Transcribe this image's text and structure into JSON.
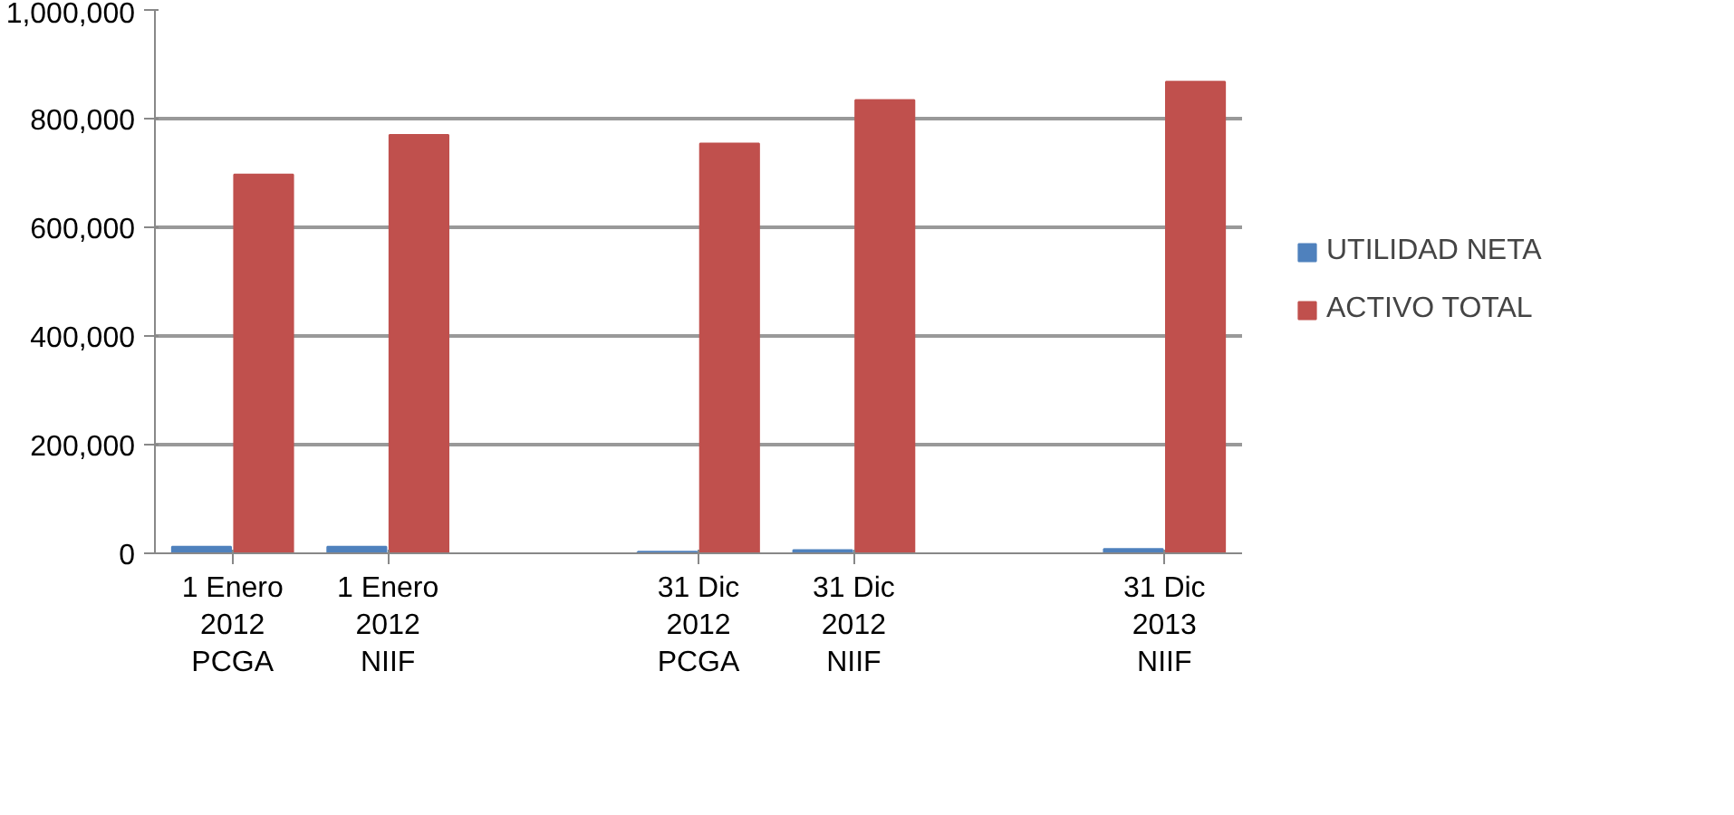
{
  "chart_data": {
    "type": "bar",
    "categories": [
      "1 Enero\n2012\nPCGA",
      "1 Enero\n2012\nNIIF",
      null,
      "31 Dic\n2012\nPCGA",
      "31 Dic\n2012\nNIIF",
      null,
      "31 Dic\n2013\nNIIF"
    ],
    "series": [
      {
        "name": "UTILIDAD NETA",
        "color": "#4f81bd",
        "values": [
          12000,
          12000,
          null,
          3000,
          6000,
          null,
          8000
        ]
      },
      {
        "name": "ACTIVO TOTAL",
        "color": "#c0504d",
        "values": [
          697000,
          770000,
          null,
          754000,
          834000,
          null,
          868000
        ]
      }
    ],
    "ylim": [
      0,
      1000000
    ],
    "yticks": [
      {
        "value": 0,
        "label": "0"
      },
      {
        "value": 200000,
        "label": "200,000"
      },
      {
        "value": 400000,
        "label": "400,000"
      },
      {
        "value": 600000,
        "label": "600,000"
      },
      {
        "value": 800000,
        "label": "800,000"
      },
      {
        "value": 1000000,
        "label": "1,000,000"
      }
    ],
    "grid": "y",
    "legend": "right"
  }
}
